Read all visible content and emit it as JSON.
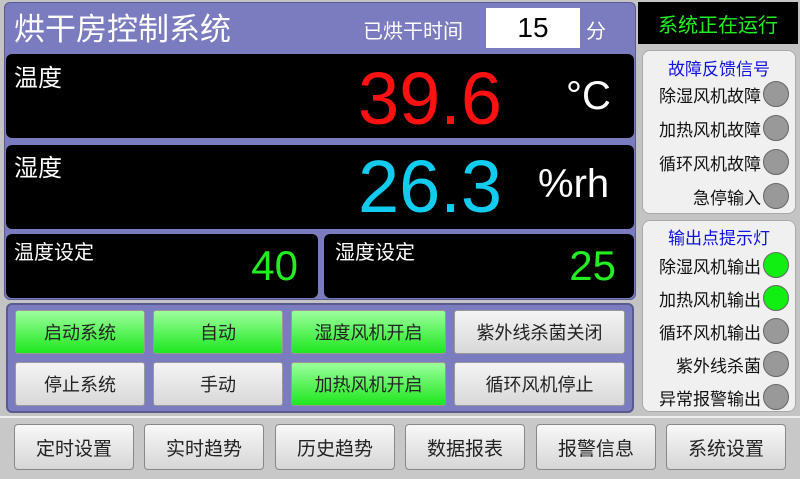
{
  "header": {
    "title": "烘干房控制系统",
    "elapsed_label": "已烘干时间",
    "elapsed_value": "15",
    "elapsed_unit": "分"
  },
  "temperature": {
    "label": "温度",
    "value": "39.6",
    "unit": "°C",
    "color": "#ff1111"
  },
  "humidity": {
    "label": "湿度",
    "value": "26.3",
    "unit": "%rh",
    "color": "#11ccee"
  },
  "setpoints": {
    "temp_label": "温度设定",
    "temp_value": "40",
    "hum_label": "湿度设定",
    "hum_value": "25"
  },
  "controls": [
    {
      "label": "启动系统",
      "active": true
    },
    {
      "label": "自动",
      "active": true
    },
    {
      "label": "湿度风机开启",
      "active": true
    },
    {
      "label": "紫外线杀菌关闭",
      "active": false
    },
    {
      "label": "停止系统",
      "active": false
    },
    {
      "label": "手动",
      "active": false
    },
    {
      "label": "加热风机开启",
      "active": true
    },
    {
      "label": "循环风机停止",
      "active": false
    }
  ],
  "status": "系统正在运行",
  "faults": {
    "title": "故障反馈信号",
    "items": [
      {
        "label": "除湿风机故障",
        "on": false
      },
      {
        "label": "加热风机故障",
        "on": false
      },
      {
        "label": "循环风机故障",
        "on": false
      },
      {
        "label": "急停输入",
        "on": false
      }
    ]
  },
  "outputs": {
    "title": "输出点提示灯",
    "items": [
      {
        "label": "除湿风机输出",
        "on": true
      },
      {
        "label": "加热风机输出",
        "on": true
      },
      {
        "label": "循环风机输出",
        "on": false
      },
      {
        "label": "紫外线杀菌",
        "on": false
      },
      {
        "label": "异常报警输出",
        "on": false
      }
    ]
  },
  "nav": [
    "定时设置",
    "实时趋势",
    "历史趋势",
    "数据报表",
    "报警信息",
    "系统设置"
  ]
}
